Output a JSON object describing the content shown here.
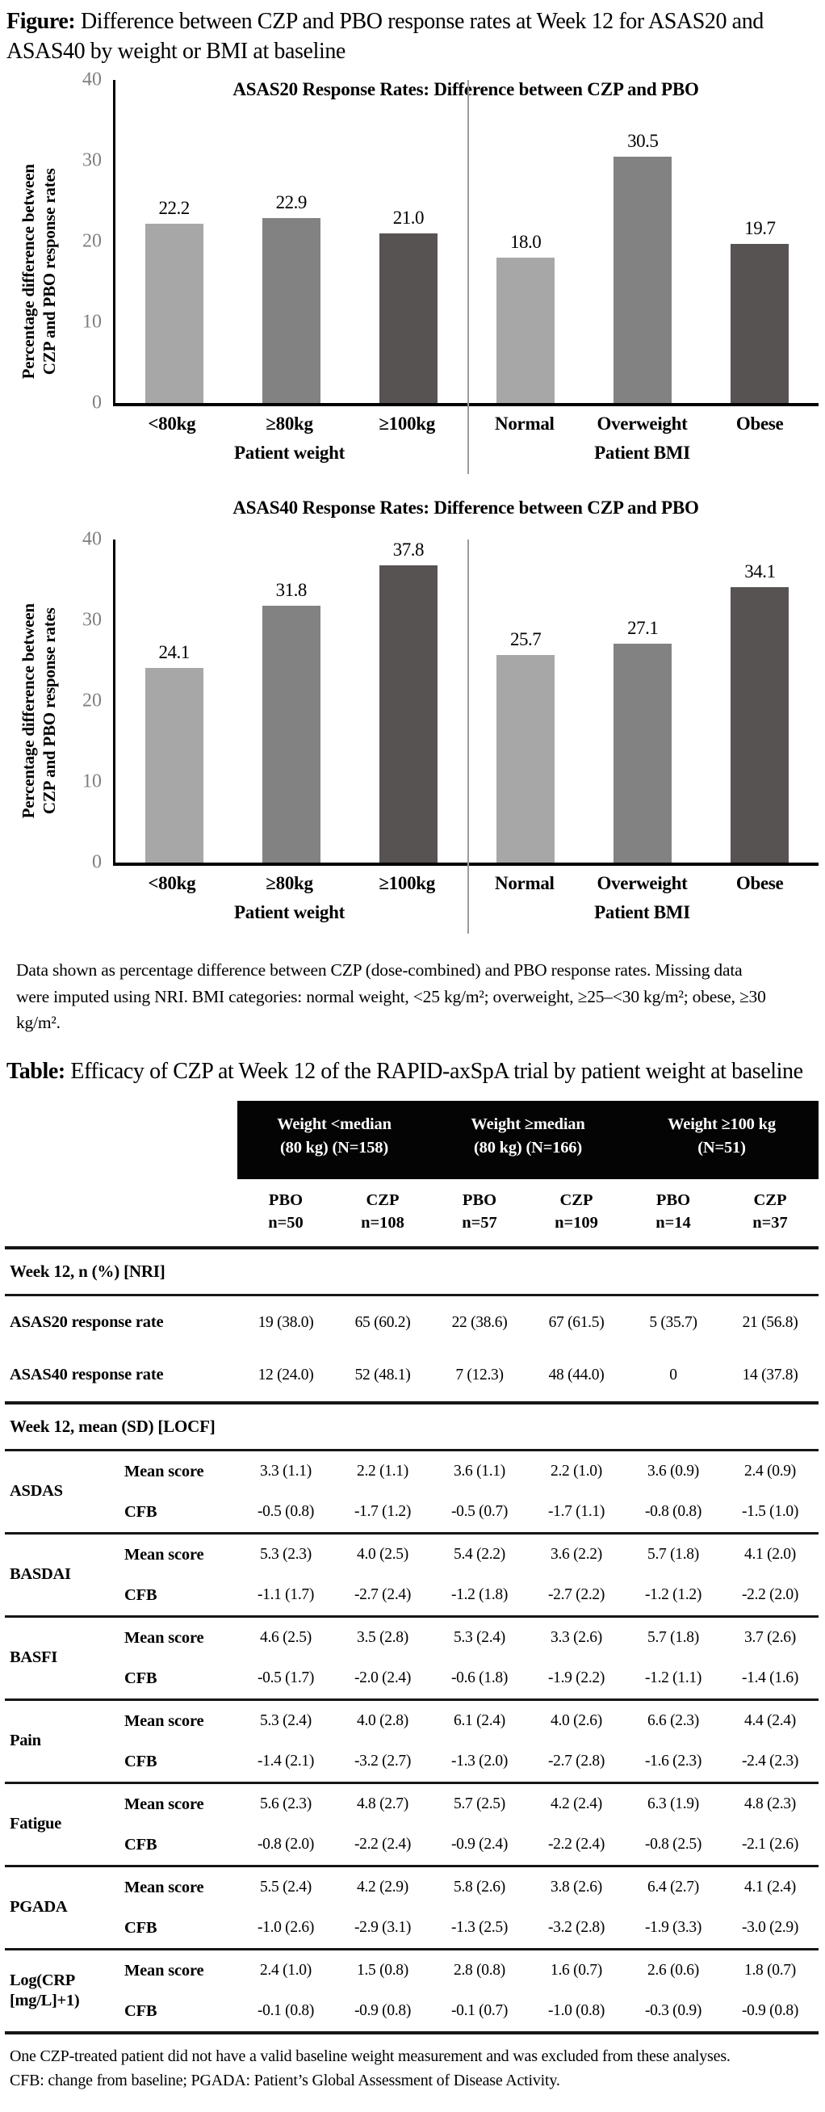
{
  "figure": {
    "caption_label": "Figure:",
    "caption_text": " Difference between CZP and PBO response rates at Week 12 for ASAS20 and ASAS40 by weight or BMI at baseline",
    "ylabel_line1": "Percentage difference between",
    "ylabel_line2": "CZP and PBO response rates",
    "footnote": "Data shown as percentage difference between CZP (dose-combined) and PBO response rates. Missing data were imputed using NRI. BMI categories: normal weight, <25 kg/m²; overweight, ≥25–<30 kg/m²; obese, ≥30 kg/m²."
  },
  "chart_data": [
    {
      "type": "bar",
      "title": "ASAS20 Response Rates: Difference between CZP and PBO",
      "ylabel": "Percentage difference between CZP and PBO response rates",
      "xlabel": "",
      "ylim": [
        0,
        40
      ],
      "yticks": [
        40,
        30,
        20,
        10,
        0
      ],
      "grid": false,
      "legend": "none",
      "bar_colors": [
        "#a7a7a7",
        "#828282",
        "#565352"
      ],
      "groups": [
        {
          "label": "Patient weight",
          "categories": [
            "<80kg",
            "≥80kg",
            "≥100kg"
          ],
          "values": [
            22.2,
            22.9,
            21.0
          ]
        },
        {
          "label": "Patient BMI",
          "categories": [
            "Normal",
            "Overweight",
            "Obese"
          ],
          "values": [
            18.0,
            30.5,
            19.7
          ]
        }
      ]
    },
    {
      "type": "bar",
      "title": "ASAS40 Response Rates: Difference between CZP and PBO",
      "ylabel": "Percentage difference between CZP and PBO response rates",
      "xlabel": "",
      "ylim": [
        0,
        40
      ],
      "yticks": [
        40,
        30,
        20,
        10,
        0
      ],
      "grid": false,
      "legend": "none",
      "bar_colors": [
        "#a7a7a7",
        "#828282",
        "#565352"
      ],
      "groups": [
        {
          "label": "Patient weight",
          "categories": [
            "<80kg",
            "≥80kg",
            "≥100kg"
          ],
          "values": [
            24.1,
            31.8,
            37.8
          ]
        },
        {
          "label": "Patient BMI",
          "categories": [
            "Normal",
            "Overweight",
            "Obese"
          ],
          "values": [
            25.7,
            27.1,
            34.1
          ]
        }
      ]
    }
  ],
  "table": {
    "caption_label": "Table:",
    "caption_text": " Efficacy of CZP at Week 12 of the RAPID-axSpA trial by patient weight at baseline",
    "col_groups": [
      {
        "line1": "Weight <median",
        "line2": "(80 kg) (N=158)"
      },
      {
        "line1": "Weight ≥median",
        "line2": "(80 kg) (N=166)"
      },
      {
        "line1": "Weight ≥100 kg",
        "line2": "(N=51)"
      }
    ],
    "sub_cols": [
      {
        "arm": "PBO",
        "n": "n=50"
      },
      {
        "arm": "CZP",
        "n": "n=108"
      },
      {
        "arm": "PBO",
        "n": "n=57"
      },
      {
        "arm": "CZP",
        "n": "n=109"
      },
      {
        "arm": "PBO",
        "n": "n=14"
      },
      {
        "arm": "CZP",
        "n": "n=37"
      }
    ],
    "section1": "Week 12, n (%) [NRI]",
    "nri_rows": [
      {
        "label": "ASAS20 response rate",
        "values": [
          "19 (38.0)",
          "65 (60.2)",
          "22 (38.6)",
          "67 (61.5)",
          "5 (35.7)",
          "21 (56.8)"
        ]
      },
      {
        "label": "ASAS40 response rate",
        "values": [
          "12 (24.0)",
          "52 (48.1)",
          "7 (12.3)",
          "48 (44.0)",
          "0",
          "14 (37.8)"
        ]
      }
    ],
    "section2": "Week 12, mean (SD) [LOCF]",
    "row_labels": {
      "mean": "Mean score",
      "cfb": "CFB"
    },
    "locf_groups": [
      {
        "name_lines": [
          "ASDAS"
        ],
        "mean": [
          "3.3 (1.1)",
          "2.2 (1.1)",
          "3.6 (1.1)",
          "2.2 (1.0)",
          "3.6 (0.9)",
          "2.4 (0.9)"
        ],
        "cfb": [
          "-0.5 (0.8)",
          "-1.7 (1.2)",
          "-0.5 (0.7)",
          "-1.7 (1.1)",
          "-0.8 (0.8)",
          "-1.5 (1.0)"
        ]
      },
      {
        "name_lines": [
          "BASDAI"
        ],
        "mean": [
          "5.3 (2.3)",
          "4.0 (2.5)",
          "5.4 (2.2)",
          "3.6 (2.2)",
          "5.7 (1.8)",
          "4.1 (2.0)"
        ],
        "cfb": [
          "-1.1 (1.7)",
          "-2.7 (2.4)",
          "-1.2 (1.8)",
          "-2.7 (2.2)",
          "-1.2 (1.2)",
          "-2.2 (2.0)"
        ]
      },
      {
        "name_lines": [
          "BASFI"
        ],
        "mean": [
          "4.6 (2.5)",
          "3.5 (2.8)",
          "5.3 (2.4)",
          "3.3 (2.6)",
          "5.7 (1.8)",
          "3.7 (2.6)"
        ],
        "cfb": [
          "-0.5 (1.7)",
          "-2.0 (2.4)",
          "-0.6 (1.8)",
          "-1.9 (2.2)",
          "-1.2 (1.1)",
          "-1.4 (1.6)"
        ]
      },
      {
        "name_lines": [
          "Pain"
        ],
        "mean": [
          "5.3 (2.4)",
          "4.0 (2.8)",
          "6.1 (2.4)",
          "4.0 (2.6)",
          "6.6 (2.3)",
          "4.4 (2.4)"
        ],
        "cfb": [
          "-1.4 (2.1)",
          "-3.2 (2.7)",
          "-1.3 (2.0)",
          "-2.7 (2.8)",
          "-1.6 (2.3)",
          "-2.4 (2.3)"
        ]
      },
      {
        "name_lines": [
          "Fatigue"
        ],
        "mean": [
          "5.6 (2.3)",
          "4.8 (2.7)",
          "5.7 (2.5)",
          "4.2 (2.4)",
          "6.3 (1.9)",
          "4.8 (2.3)"
        ],
        "cfb": [
          "-0.8 (2.0)",
          "-2.2 (2.4)",
          "-0.9 (2.4)",
          "-2.2 (2.4)",
          "-0.8 (2.5)",
          "-2.1 (2.6)"
        ]
      },
      {
        "name_lines": [
          "PGADA"
        ],
        "mean": [
          "5.5 (2.4)",
          "4.2 (2.9)",
          "5.8 (2.6)",
          "3.8 (2.6)",
          "6.4 (2.7)",
          "4.1 (2.4)"
        ],
        "cfb": [
          "-1.0 (2.6)",
          "-2.9 (3.1)",
          "-1.3 (2.5)",
          "-3.2 (2.8)",
          "-1.9 (3.3)",
          "-3.0 (2.9)"
        ]
      },
      {
        "name_lines": [
          "Log(CRP",
          "[mg/L]+1)"
        ],
        "mean": [
          "2.4 (1.0)",
          "1.5 (0.8)",
          "2.8 (0.8)",
          "1.6 (0.7)",
          "2.6 (0.6)",
          "1.8 (0.7)"
        ],
        "cfb": [
          "-0.1 (0.8)",
          "-0.9 (0.8)",
          "-0.1 (0.7)",
          "-1.0 (0.8)",
          "-0.3 (0.9)",
          "-0.9 (0.8)"
        ]
      }
    ],
    "footnote": "One CZP-treated patient did not have a valid baseline weight measurement and was excluded from these analyses. CFB: change from baseline; PGADA: Patient’s Global Assessment of Disease Activity."
  },
  "colors": {
    "bar_light": "#a7a7a7",
    "bar_medium": "#828282",
    "bar_dark": "#565352",
    "tick_gray": "#7f7f7f",
    "header_band": "#040404",
    "rule": "#161616"
  }
}
